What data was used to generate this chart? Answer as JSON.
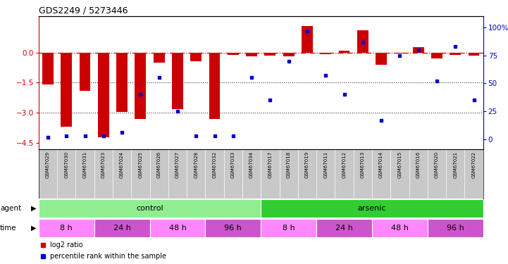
{
  "title": "GDS2249 / 5273446",
  "samples": [
    "GSM67029",
    "GSM67030",
    "GSM67031",
    "GSM67023",
    "GSM67024",
    "GSM67025",
    "GSM67026",
    "GSM67027",
    "GSM67028",
    "GSM67032",
    "GSM67033",
    "GSM67034",
    "GSM67017",
    "GSM67018",
    "GSM67019",
    "GSM67011",
    "GSM67012",
    "GSM67013",
    "GSM67014",
    "GSM67015",
    "GSM67016",
    "GSM67020",
    "GSM67021",
    "GSM67022"
  ],
  "log2_ratio": [
    -1.6,
    -3.7,
    -1.9,
    -4.2,
    -2.95,
    -3.3,
    -0.5,
    -2.8,
    -0.45,
    -3.3,
    -0.12,
    -0.2,
    -0.15,
    -0.2,
    1.3,
    -0.1,
    0.08,
    1.1,
    -0.6,
    -0.05,
    0.25,
    -0.3,
    -0.12,
    -0.15
  ],
  "percentile": [
    2,
    3,
    3,
    3,
    6,
    40,
    55,
    25,
    3,
    3,
    3,
    55,
    35,
    70,
    97,
    57,
    40,
    87,
    17,
    75,
    80,
    52,
    83,
    35
  ],
  "agent_groups": [
    {
      "label": "control",
      "start": 0,
      "end": 12,
      "color": "#90EE90"
    },
    {
      "label": "arsenic",
      "start": 12,
      "end": 24,
      "color": "#33CC33"
    }
  ],
  "time_groups": [
    {
      "label": "8 h",
      "start": 0,
      "end": 3,
      "color": "#FF88FF"
    },
    {
      "label": "24 h",
      "start": 3,
      "end": 6,
      "color": "#CC55CC"
    },
    {
      "label": "48 h",
      "start": 6,
      "end": 9,
      "color": "#FF88FF"
    },
    {
      "label": "96 h",
      "start": 9,
      "end": 12,
      "color": "#CC55CC"
    },
    {
      "label": "8 h",
      "start": 12,
      "end": 15,
      "color": "#FF88FF"
    },
    {
      "label": "24 h",
      "start": 15,
      "end": 18,
      "color": "#CC55CC"
    },
    {
      "label": "48 h",
      "start": 18,
      "end": 21,
      "color": "#FF88FF"
    },
    {
      "label": "96 h",
      "start": 21,
      "end": 24,
      "color": "#CC55CC"
    }
  ],
  "ylim_left": [
    -4.8,
    1.8
  ],
  "ylim_right": [
    -8.8,
    110.0
  ],
  "yticks_left": [
    0,
    -1.5,
    -3.0,
    -4.5
  ],
  "yticks_right": [
    0,
    25,
    50,
    75,
    100
  ],
  "bar_color_red": "#CC0000",
  "bar_color_blue": "#0000CC",
  "zero_line_color": "#CC0000",
  "bg_color": "#FFFFFF",
  "sample_bg": "#C8C8C8",
  "legend_red": "log2 ratio",
  "legend_blue": "percentile rank within the sample"
}
